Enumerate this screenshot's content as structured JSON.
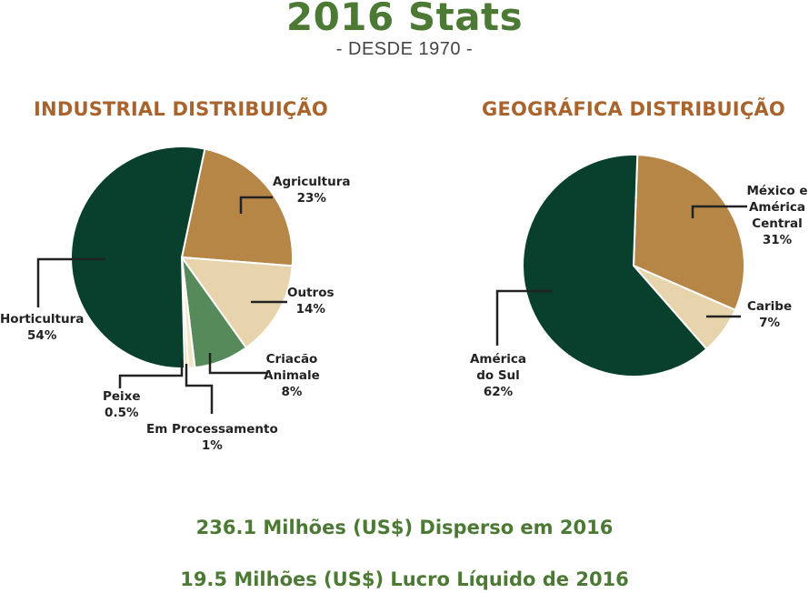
{
  "header": {
    "title": "2016 Stats",
    "subtitle": "- DESDE 1970 -"
  },
  "colors": {
    "dark_green": "#08402d",
    "brown": "#b68647",
    "sand": "#e7d4ad",
    "mid_green": "#578a5a",
    "cream": "#f1e6c8",
    "title_green": "#4c7a34",
    "chart_title_brown": "#a8642c"
  },
  "chart_data": [
    {
      "type": "pie",
      "title": "INDUSTRIAL DISTRIBUIÇÃO",
      "slices": [
        {
          "label": "Agricultura",
          "value_label": "23%",
          "value": 23,
          "color": "#b68647"
        },
        {
          "label": "Outros",
          "value_label": "14%",
          "value": 14,
          "color": "#e7d4ad"
        },
        {
          "label": "Criacão Animale",
          "value_label": "8%",
          "value": 8,
          "color": "#578a5a"
        },
        {
          "label": "Em Processamento",
          "value_label": "1%",
          "value": 1,
          "color": "#f1e6c8"
        },
        {
          "label": "Peixe",
          "value_label": "0.5%",
          "value": 0.5,
          "color": "#e7d4ad"
        },
        {
          "label": "Horticultura",
          "value_label": "54%",
          "value": 54,
          "color": "#08402d"
        }
      ]
    },
    {
      "type": "pie",
      "title": "GEOGRÁFICA DISTRIBUIÇÃO",
      "slices": [
        {
          "label": "México e América Central",
          "value_label": "31%",
          "value": 31,
          "color": "#b68647"
        },
        {
          "label": "Caribe",
          "value_label": "7%",
          "value": 7,
          "color": "#e7d4ad"
        },
        {
          "label": "América do Sul",
          "value_label": "62%",
          "value": 62,
          "color": "#08402d"
        }
      ]
    }
  ],
  "footer": {
    "stat1": "236.1 Milhões (US$) Disperso em 2016",
    "stat2": "19.5 Milhões (US$) Lucro Líquido de 2016"
  }
}
